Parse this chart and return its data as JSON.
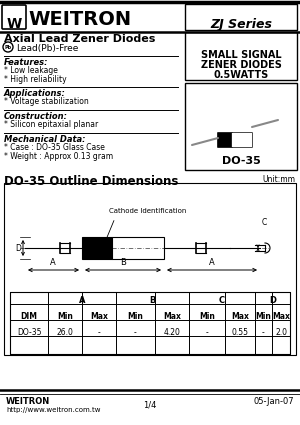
{
  "series_box": "ZJ Series",
  "page_title": "Axial Lead Zener Diodes",
  "lead_free": "Lead(Pb)-Free",
  "features_title": "Features:",
  "features": [
    "* Low leakage",
    "* High reliability"
  ],
  "applications_title": "Applications:",
  "applications": [
    "* Voltage stabilization"
  ],
  "construction_title": "Construction:",
  "construction": [
    "* Silicon epitaxial planar"
  ],
  "mechanical_title": "Mechanical Data:",
  "mechanical": [
    "* Case : DO-35 Glass Case",
    "* Weight : Approx 0.13 gram"
  ],
  "product_desc1": "SMALL SIGNAL",
  "product_desc2": "ZENER DIODES",
  "product_desc3": "0.5WATTS",
  "package": "DO-35",
  "outline_title": "DO-35 Outline Dimensions",
  "unit": "Unit:mm",
  "cathode_label": "Cathode Identification",
  "dim_col_headers": [
    "A",
    "B",
    "C",
    "D"
  ],
  "dim_row1": [
    "DIM",
    "Min",
    "Max",
    "Min",
    "Max",
    "Min",
    "Max",
    "Min",
    "Max"
  ],
  "dim_row2": [
    "DO-35",
    "26.0",
    "-",
    "-",
    "4.20",
    "-",
    "0.55",
    "-",
    "2.0"
  ],
  "footer_company": "WEITRON",
  "footer_url": "http://www.weitron.com.tw",
  "footer_page": "1/4",
  "footer_date": "05-Jan-07",
  "bg_color": "#ffffff"
}
